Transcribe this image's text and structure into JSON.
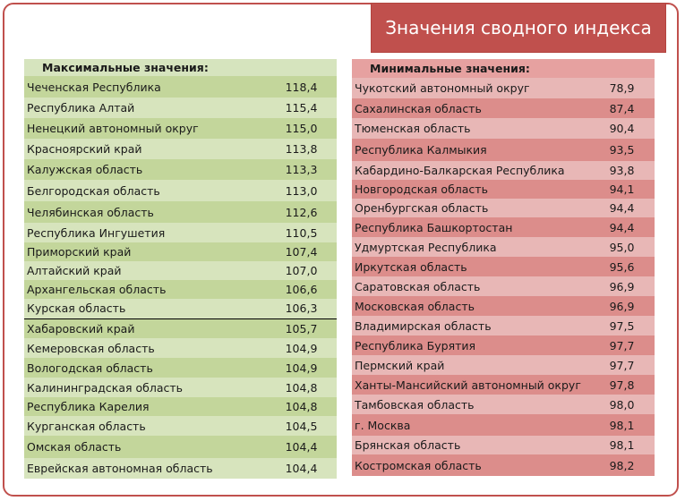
{
  "title": "Значения сводного индекса",
  "max": {
    "header": "Максимальные значения:",
    "rows": [
      {
        "name": "Чеченская Республика",
        "value": "118,4"
      },
      {
        "name": "Республика Алтай",
        "value": "115,4"
      },
      {
        "name": "Ненецкий автономный округ",
        "value": "115,0"
      },
      {
        "name": "Красноярский край",
        "value": "113,8"
      },
      {
        "name": "Калужская область",
        "value": "113,3"
      },
      {
        "name": "Белгородская область",
        "value": "113,0"
      },
      {
        "name": "Челябинская область",
        "value": "112,6"
      },
      {
        "name": "Республика Ингушетия",
        "value": "110,5"
      },
      {
        "name": "Приморский край",
        "value": "107,4"
      },
      {
        "name": "Алтайский край",
        "value": "107,0"
      },
      {
        "name": "Архангельская область",
        "value": "106,6"
      },
      {
        "name": "Курская область",
        "value": "106,3"
      },
      {
        "name": "Хабаровский край",
        "value": "105,7"
      },
      {
        "name": "Кемеровская область",
        "value": "104,9"
      },
      {
        "name": "Вологодская область",
        "value": "104,9"
      },
      {
        "name": "Калининградская область",
        "value": "104,8"
      },
      {
        "name": "Республика Карелия",
        "value": "104,8"
      },
      {
        "name": "Курганская область",
        "value": "104,5"
      },
      {
        "name": "Омская область",
        "value": "104,4"
      },
      {
        "name": "Еврейская автономная область",
        "value": "104,4"
      }
    ]
  },
  "min": {
    "header": "Минимальные значения:",
    "rows": [
      {
        "name": "Чукотский автономный округ",
        "value": "78,9"
      },
      {
        "name": "Сахалинская область",
        "value": "87,4"
      },
      {
        "name": "Тюменская область",
        "value": "90,4"
      },
      {
        "name": "Республика Калмыкия",
        "value": "93,5"
      },
      {
        "name": "Кабардино-Балкарская Республика",
        "value": "93,8"
      },
      {
        "name": "Новгородская область",
        "value": "94,1"
      },
      {
        "name": "Оренбургская область",
        "value": "94,4"
      },
      {
        "name": "Республика Башкортостан",
        "value": "94,4"
      },
      {
        "name": "Удмуртская Республика",
        "value": "95,0"
      },
      {
        "name": "Иркутская область",
        "value": "95,6"
      },
      {
        "name": "Саратовская область",
        "value": "96,9"
      },
      {
        "name": "Московская область",
        "value": "96,9"
      },
      {
        "name": "Владимирская область",
        "value": "97,5"
      },
      {
        "name": "Республика Бурятия",
        "value": "97,7"
      },
      {
        "name": "Пермский край",
        "value": "97,7"
      },
      {
        "name": "Ханты-Мансийский автономный округ",
        "value": "97,8"
      },
      {
        "name": "Тамбовская область",
        "value": "98,0"
      },
      {
        "name": "г. Москва",
        "value": "98,1"
      },
      {
        "name": "Брянская область",
        "value": "98,1"
      },
      {
        "name": "Костромская область",
        "value": "98,2"
      }
    ]
  }
}
